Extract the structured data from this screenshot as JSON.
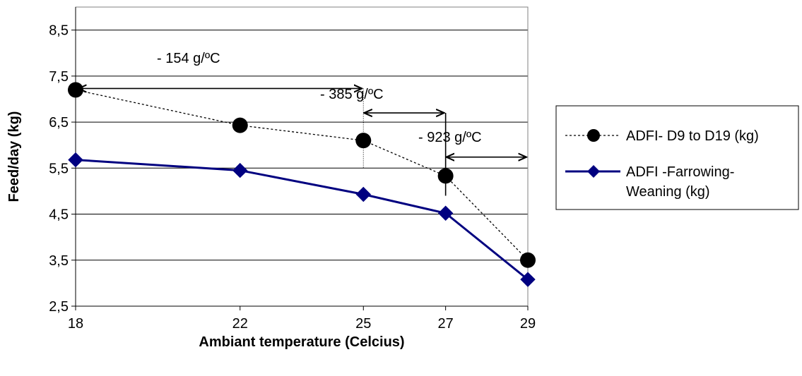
{
  "chart_data": {
    "type": "line",
    "title": "",
    "xlabel": "Ambiant temperature (Celcius)",
    "ylabel": "Feed/day (kg)",
    "categories": [
      "18",
      "22",
      "25",
      "27",
      "29"
    ],
    "ylim": [
      2.5,
      9.0
    ],
    "yticks": [
      "2,5",
      "3,5",
      "4,5",
      "5,5",
      "6,5",
      "7,5",
      "8,5"
    ],
    "ytick_values": [
      2.5,
      3.5,
      4.5,
      5.5,
      6.5,
      7.5,
      8.5
    ],
    "grid": true,
    "legend_position": "right",
    "series": [
      {
        "name": "ADFI- D9 to D19 (kg)",
        "values": [
          7.2,
          6.43,
          6.1,
          5.33,
          3.5
        ],
        "color": "#000000",
        "line_style": "dotted",
        "marker": "circle"
      },
      {
        "name_lines": [
          "ADFI -Farrowing-",
          "Weaning (kg)"
        ],
        "values": [
          5.68,
          5.45,
          4.93,
          4.52,
          3.08
        ],
        "color": "#000080",
        "line_style": "solid",
        "marker": "diamond"
      }
    ],
    "annotations": [
      {
        "text": "- 154 g/ºC",
        "from": "18",
        "to": "25"
      },
      {
        "text": "- 385 g/ºC",
        "from": "25",
        "to": "27"
      },
      {
        "text": "- 923 g/ºC",
        "from": "27",
        "to": "29"
      }
    ]
  }
}
